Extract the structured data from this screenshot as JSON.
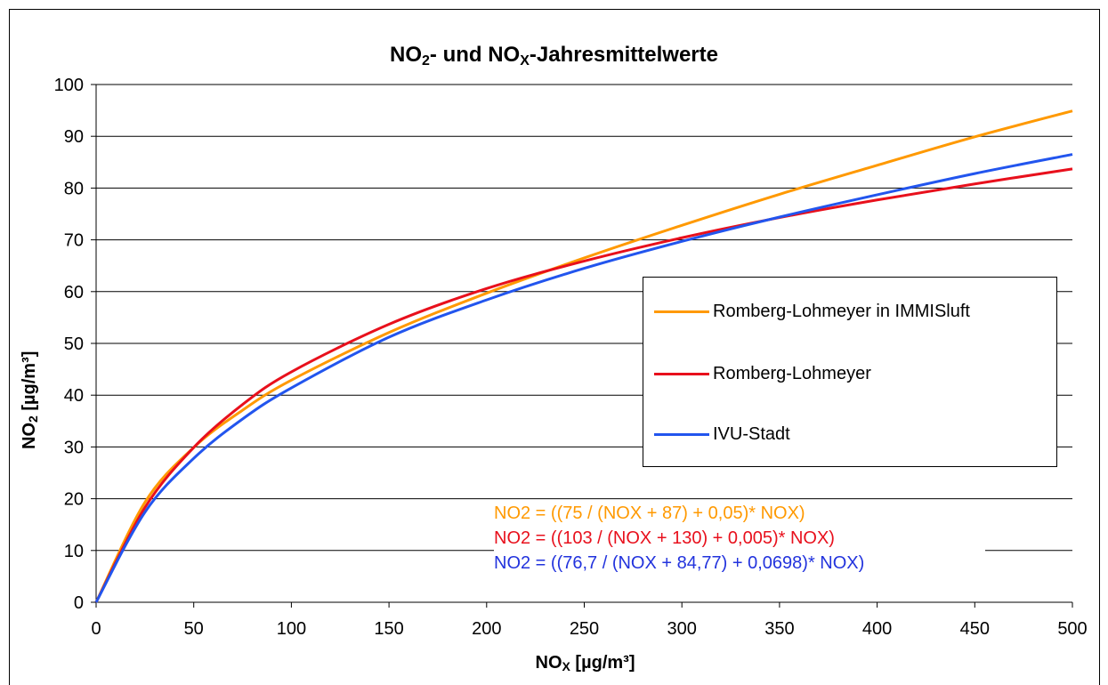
{
  "chart_data": {
    "type": "line",
    "title": {
      "prefix": "NO",
      "sub1": "2",
      "middle": "- und NO",
      "sub2": "X",
      "suffix": "-Jahresmittelwerte"
    },
    "xlabel": {
      "prefix": "NO",
      "sub": "X",
      "suffix": " [µg/m³]"
    },
    "ylabel": {
      "prefix": "NO",
      "sub": "2",
      "suffix": " [µg/m³]"
    },
    "xlim": [
      0,
      500
    ],
    "ylim": [
      0,
      100
    ],
    "xticks": [
      "0",
      "50",
      "100",
      "150",
      "200",
      "250",
      "300",
      "350",
      "400",
      "450",
      "500"
    ],
    "yticks": [
      "0",
      "10",
      "20",
      "30",
      "40",
      "50",
      "60",
      "70",
      "80",
      "90",
      "100"
    ],
    "grid": "horizontal",
    "legend_position": "right",
    "x": [
      0,
      25,
      50,
      75,
      100,
      150,
      200,
      250,
      300,
      350,
      400,
      450,
      500
    ],
    "series": [
      {
        "name": "Romberg-Lohmeyer in IMMISluft",
        "color": "#FF9900",
        "values": [
          0,
          19.3,
          29.9,
          37.1,
          42.9,
          52.1,
          59.7,
          66.5,
          72.8,
          78.8,
          84.4,
          89.9,
          94.9
        ]
      },
      {
        "name": "Romberg-Lohmeyer",
        "color": "#E8101C",
        "values": [
          0,
          18.3,
          29.9,
          38.2,
          44.5,
          53.7,
          60.6,
          65.9,
          70.4,
          74.3,
          77.7,
          80.8,
          83.7
        ]
      },
      {
        "name": "IVU-Stadt",
        "color": "#2255EE",
        "values": [
          0,
          17.4,
          27.8,
          35.4,
          41.4,
          51.2,
          58.4,
          64.5,
          69.7,
          74.4,
          78.7,
          82.8,
          86.5
        ]
      }
    ],
    "formulas": [
      {
        "text": "NO2 = ((75 / (NOX + 87) + 0,05)* NOX)",
        "color": "#FF9900"
      },
      {
        "text": "NO2 = ((103 / (NOX + 130) + 0,005)* NOX)",
        "color": "#E8101C"
      },
      {
        "text": "NO2 = ((76,7 / (NOX + 84,77) + 0,0698)* NOX)",
        "color": "#2233DD"
      }
    ]
  }
}
